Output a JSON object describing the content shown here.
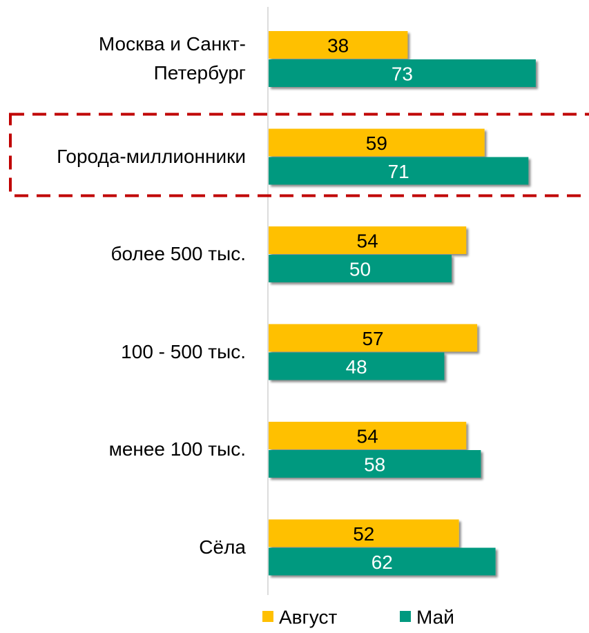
{
  "chart_data": {
    "type": "bar",
    "orientation": "horizontal",
    "categories": [
      "Москва и Санкт-Петербург",
      "Города-миллионники",
      "более 500 тыс.",
      "100 - 500 тыс.",
      "менее 100 тыс.",
      "Сёла"
    ],
    "series": [
      {
        "name": "Август",
        "color": "#FFC000",
        "label_color": "#000000",
        "values": [
          38,
          59,
          54,
          57,
          54,
          52
        ]
      },
      {
        "name": "Май",
        "color": "#00997F",
        "label_color": "#FFFFFF",
        "values": [
          73,
          71,
          50,
          48,
          58,
          62
        ]
      }
    ],
    "highlight_category": 1,
    "highlight_color": "#C00000",
    "legend": "bottom"
  }
}
